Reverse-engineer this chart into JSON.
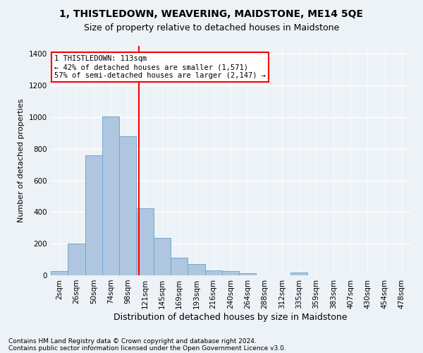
{
  "title": "1, THISTLEDOWN, WEAVERING, MAIDSTONE, ME14 5QE",
  "subtitle": "Size of property relative to detached houses in Maidstone",
  "xlabel": "Distribution of detached houses by size in Maidstone",
  "ylabel": "Number of detached properties",
  "footnote1": "Contains HM Land Registry data © Crown copyright and database right 2024.",
  "footnote2": "Contains public sector information licensed under the Open Government Licence v3.0.",
  "categories": [
    "2sqm",
    "26sqm",
    "50sqm",
    "74sqm",
    "98sqm",
    "121sqm",
    "145sqm",
    "169sqm",
    "193sqm",
    "216sqm",
    "240sqm",
    "264sqm",
    "288sqm",
    "312sqm",
    "335sqm",
    "359sqm",
    "383sqm",
    "407sqm",
    "430sqm",
    "454sqm",
    "478sqm"
  ],
  "values": [
    25,
    200,
    760,
    1005,
    880,
    425,
    235,
    110,
    70,
    30,
    25,
    15,
    0,
    0,
    20,
    0,
    0,
    0,
    0,
    0,
    0
  ],
  "bar_color": "#aec6df",
  "bar_edge_color": "#6fa8d0",
  "annotation_text": "1 THISTLEDOWN: 113sqm\n← 42% of detached houses are smaller (1,571)\n57% of semi-detached houses are larger (2,147) →",
  "vline_x": 4.65,
  "vline_color": "red",
  "box_color": "#ffffff",
  "box_edge_color": "red",
  "ylim": [
    0,
    1450
  ],
  "yticks": [
    0,
    200,
    400,
    600,
    800,
    1000,
    1200,
    1400
  ],
  "background_color": "#edf2f7",
  "grid_color": "#ffffff",
  "title_fontsize": 10,
  "subtitle_fontsize": 9,
  "ylabel_fontsize": 8,
  "xlabel_fontsize": 9,
  "tick_fontsize": 7.5,
  "footnote_fontsize": 6.5
}
